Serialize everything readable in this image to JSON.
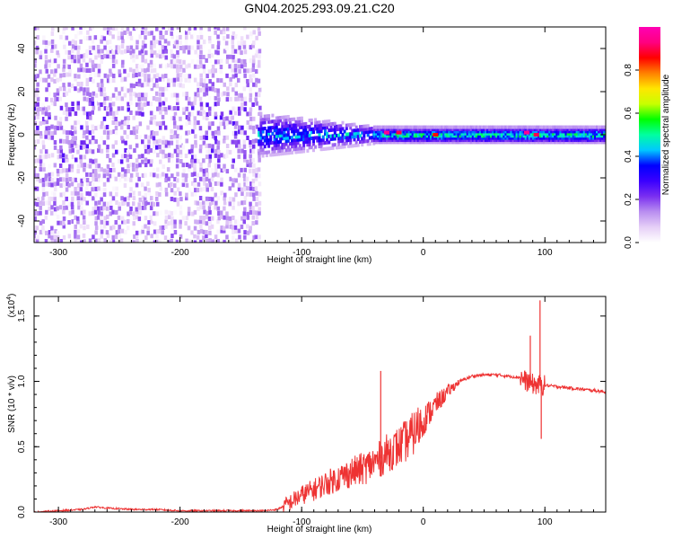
{
  "title": "GN04.2025.293.09.21.C20",
  "chart_data": [
    {
      "type": "heatmap",
      "name": "spectrogram",
      "xlabel": "Height of straight line (km)",
      "ylabel": "Frequency (Hz)",
      "xlim": [
        -320,
        150
      ],
      "ylim": [
        -50,
        50
      ],
      "xticks": [
        -300,
        -200,
        -100,
        0,
        100
      ],
      "xtick_labels": [
        "-300",
        "-200",
        "-100",
        "0",
        "100"
      ],
      "yticks": [
        -40,
        -20,
        0,
        20,
        40
      ],
      "ytick_labels": [
        "-40",
        "-20",
        "0",
        "20",
        "40"
      ],
      "colorbar": {
        "label": "Normalized spectral amplitude",
        "range": [
          0,
          1
        ],
        "ticks": [
          0.0,
          0.2,
          0.4,
          0.6,
          0.8
        ],
        "tick_labels": [
          "0.0",
          "0.2",
          "0.4",
          "0.6",
          "0.8"
        ],
        "colors": [
          "#ffffff",
          "#e6cff7",
          "#b98ef0",
          "#7a2ff0",
          "#3a00ff",
          "#0000ff",
          "#00c8ff",
          "#00ffa0",
          "#00ff00",
          "#c8ff00",
          "#ffe600",
          "#ff8000",
          "#ff0000",
          "#ff0080",
          "#ff00b4"
        ]
      },
      "regions": [
        {
          "name": "noise",
          "x": [
            -320,
            -135
          ],
          "freq_extent": [
            -50,
            50
          ],
          "amplitude": [
            0.0,
            0.2
          ]
        },
        {
          "name": "onset",
          "x": [
            -135,
            -40
          ],
          "freq_extent": [
            -10,
            10
          ],
          "amplitude": [
            0.1,
            0.45
          ]
        },
        {
          "name": "tone",
          "x": [
            -40,
            150
          ],
          "freq_extent": [
            -2,
            2
          ],
          "amplitude": [
            0.3,
            0.95
          ]
        }
      ],
      "peak_points": [
        {
          "x": -30,
          "freq": 1,
          "amplitude": 0.95
        },
        {
          "x": -20,
          "freq": 1,
          "amplitude": 0.9
        },
        {
          "x": 10,
          "freq": 0,
          "amplitude": 0.85
        },
        {
          "x": 85,
          "freq": 1,
          "amplitude": 0.95
        },
        {
          "x": 93,
          "freq": 0,
          "amplitude": 0.9
        }
      ]
    },
    {
      "type": "line",
      "name": "snr",
      "xlabel": "Height of straight line (km)",
      "ylabel": "SNR (10 * v/v)",
      "scale_label": "(x10",
      "scale_exponent": "4",
      "xlim": [
        -320,
        150
      ],
      "ylim": [
        0,
        1.65
      ],
      "xticks": [
        -300,
        -200,
        -100,
        0,
        100
      ],
      "xtick_labels": [
        "-300",
        "-200",
        "-100",
        "0",
        "100"
      ],
      "yticks": [
        0.0,
        0.5,
        1.0,
        1.5
      ],
      "ytick_labels": [
        "0.0",
        "0.5",
        "1.0",
        "1.5"
      ],
      "color": "#ee3333",
      "series": [
        {
          "name": "SNR",
          "x": [
            -320,
            -300,
            -280,
            -270,
            -260,
            -240,
            -220,
            -200,
            -180,
            -160,
            -140,
            -130,
            -120,
            -110,
            -100,
            -90,
            -80,
            -70,
            -60,
            -50,
            -40,
            -35,
            -30,
            -20,
            -10,
            0,
            10,
            20,
            30,
            40,
            50,
            60,
            70,
            80,
            85,
            90,
            95,
            100,
            110,
            120,
            130,
            140,
            150
          ],
          "y": [
            0.0,
            0.01,
            0.02,
            0.04,
            0.03,
            0.02,
            0.02,
            0.01,
            0.01,
            0.01,
            0.01,
            0.01,
            0.02,
            0.07,
            0.13,
            0.17,
            0.22,
            0.26,
            0.3,
            0.33,
            0.38,
            0.41,
            0.45,
            0.5,
            0.58,
            0.7,
            0.82,
            0.92,
            1.0,
            1.04,
            1.05,
            1.05,
            1.04,
            1.03,
            1.0,
            0.98,
            0.97,
            0.97,
            0.96,
            0.95,
            0.94,
            0.93,
            0.92
          ]
        }
      ],
      "spikes": [
        {
          "x": -35,
          "y": 1.08
        },
        {
          "x": 88,
          "y": 1.35
        },
        {
          "x": 96,
          "y": 1.62
        },
        {
          "x": 97,
          "y": 0.56
        }
      ]
    }
  ]
}
